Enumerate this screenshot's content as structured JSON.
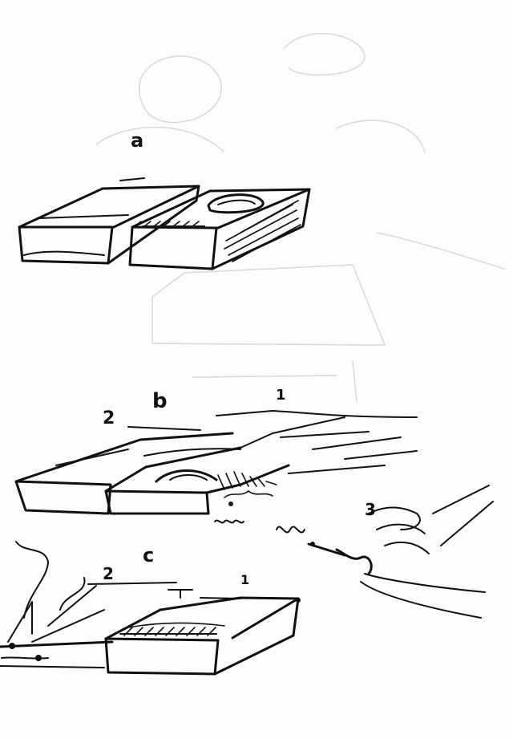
{
  "panels": {
    "a": {
      "label": "a"
    },
    "b": {
      "label": "b",
      "part_labels": [
        "2",
        "1",
        "3"
      ]
    },
    "c": {
      "label": "c",
      "part_labels": [
        "2",
        "1"
      ]
    }
  },
  "colors": {
    "ink": "#111111",
    "paper": "#fdfdfb",
    "bleed": "#d8d8d8"
  }
}
